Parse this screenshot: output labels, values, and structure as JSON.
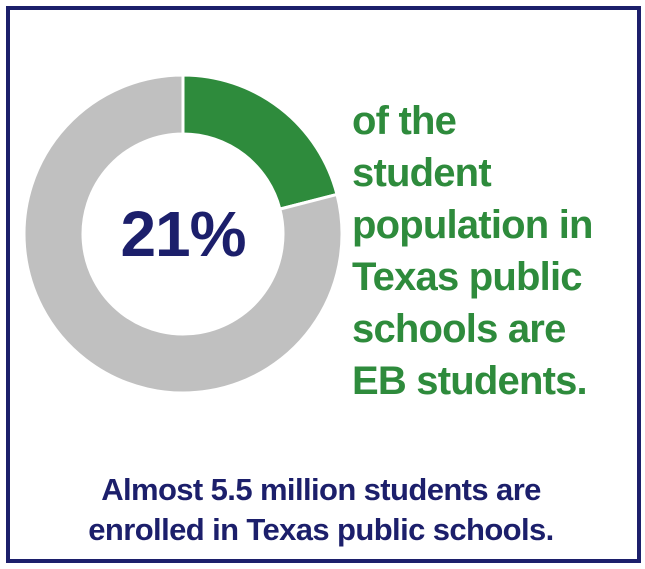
{
  "chart_data": {
    "type": "pie",
    "slices": [
      {
        "value": 21,
        "color": "#2e8b3c"
      },
      {
        "value": 79,
        "color": "#c0c0c0"
      }
    ],
    "center_label": "21%"
  },
  "description": {
    "side_text": " of the\nstudent\npopulation in\nTexas public\nschools are\nEB students.",
    "bottom_text": "Almost 5.5 million students are\nenrolled in Texas public schools."
  },
  "colors": {
    "border": "#1c1f6b",
    "highlight": "#2e8b3c",
    "remainder": "#c0c0c0",
    "center_text": "#1c1f6b"
  }
}
